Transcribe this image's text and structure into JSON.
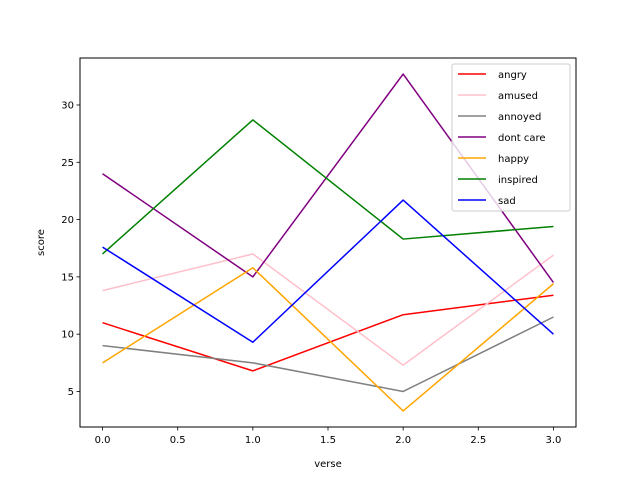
{
  "chart_data": {
    "type": "line",
    "title": "",
    "xlabel": "verse",
    "ylabel": "score",
    "xlim": [
      -0.15,
      3.15
    ],
    "ylim": [
      1.9,
      34.1
    ],
    "x": [
      0,
      1,
      2,
      3
    ],
    "xticks": [
      "0.0",
      "0.5",
      "1.0",
      "1.5",
      "2.0",
      "2.5",
      "3.0"
    ],
    "yticks": [
      "5",
      "10",
      "15",
      "20",
      "25",
      "30"
    ],
    "grid": false,
    "legend_position": "top-right",
    "series": [
      {
        "name": "angry",
        "color": "#ff0000",
        "values": [
          11.0,
          6.8,
          11.7,
          13.4
        ]
      },
      {
        "name": "amused",
        "color": "#ffc0cb",
        "values": [
          13.8,
          17.0,
          7.3,
          16.9
        ]
      },
      {
        "name": "annoyed",
        "color": "#808080",
        "values": [
          9.0,
          7.5,
          5.0,
          11.5
        ]
      },
      {
        "name": "dont care",
        "color": "#800080",
        "values": [
          24.0,
          15.0,
          32.7,
          14.5
        ]
      },
      {
        "name": "happy",
        "color": "#ffa500",
        "values": [
          7.5,
          15.8,
          3.3,
          14.4
        ]
      },
      {
        "name": "inspired",
        "color": "#008000",
        "values": [
          17.0,
          28.7,
          18.3,
          19.4
        ]
      },
      {
        "name": "sad",
        "color": "#0000ff",
        "values": [
          17.6,
          9.3,
          21.7,
          10.0
        ]
      }
    ]
  }
}
